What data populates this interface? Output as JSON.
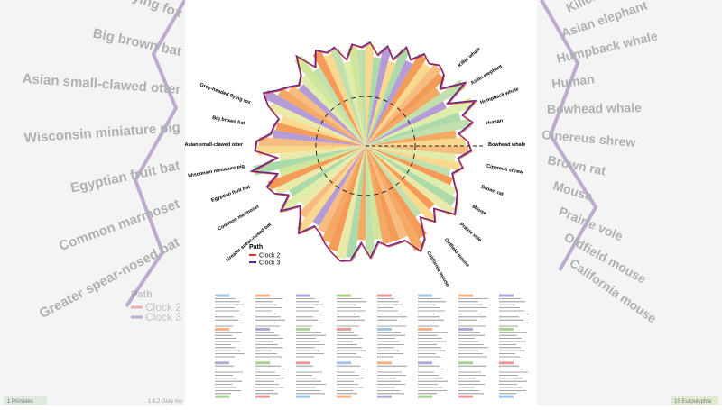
{
  "figure": {
    "legend": {
      "title": "Path",
      "items": [
        "Clock 2",
        "Clock 3"
      ]
    },
    "right_species": [
      "Killer whale",
      "Asian elephant",
      "Humpback whale",
      "Human",
      "Bowhead whale",
      "Cinereus shrew",
      "Brown rat",
      "Mouse",
      "Prairie vole",
      "Oldfield mouse",
      "California mouse"
    ],
    "left_species": [
      "Grey-headed flying fox",
      "Big brown bat",
      "Asian small-clawed otter",
      "Wisconsin miniature pig",
      "Egyptian fruit bat",
      "Common marmoset",
      "Greater spear-nosed bat"
    ],
    "footer": {
      "left": "1 Primates",
      "middle": "1.6.2 Gray mo",
      "right": "10 Eulipotyphla"
    }
  }
}
